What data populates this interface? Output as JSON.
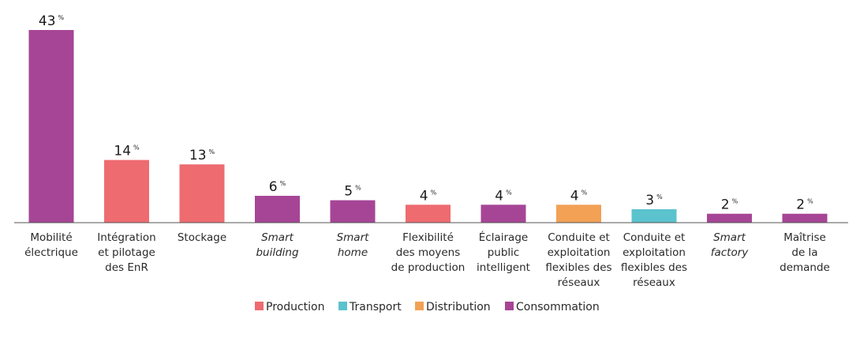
{
  "chart_data": {
    "type": "bar",
    "unit_suffix": "%",
    "categories": [
      {
        "label": [
          "Mobilité",
          "électrique"
        ],
        "italic": false,
        "value": 43,
        "group": "Consommation"
      },
      {
        "label": [
          "Intégration",
          "et pilotage",
          "des EnR"
        ],
        "italic": false,
        "value": 14,
        "group": "Production"
      },
      {
        "label": [
          "Stockage"
        ],
        "italic": false,
        "value": 13,
        "group": "Production"
      },
      {
        "label": [
          "Smart",
          "building"
        ],
        "italic": true,
        "value": 6,
        "group": "Consommation"
      },
      {
        "label": [
          "Smart",
          "home"
        ],
        "italic": true,
        "value": 5,
        "group": "Consommation"
      },
      {
        "label": [
          "Flexibilité",
          "des moyens",
          "de production"
        ],
        "italic": false,
        "value": 4,
        "group": "Production"
      },
      {
        "label": [
          "Éclairage",
          "public",
          "intelligent"
        ],
        "italic": false,
        "value": 4,
        "group": "Consommation"
      },
      {
        "label": [
          "Conduite et",
          "exploitation",
          "flexibles des",
          "réseaux"
        ],
        "italic": false,
        "value": 4,
        "group": "Distribution"
      },
      {
        "label": [
          "Conduite et",
          "exploitation",
          "flexibles des",
          "réseaux"
        ],
        "italic": false,
        "value": 3,
        "group": "Transport"
      },
      {
        "label": [
          "Smart",
          "factory"
        ],
        "italic": true,
        "value": 2,
        "group": "Consommation"
      },
      {
        "label": [
          "Maîtrise",
          "de la",
          "demande"
        ],
        "italic": false,
        "value": 2,
        "group": "Consommation"
      }
    ],
    "legend": [
      {
        "name": "Production",
        "color": "#EE6B70"
      },
      {
        "name": "Transport",
        "color": "#5BC3CD"
      },
      {
        "name": "Distribution",
        "color": "#F2A155"
      },
      {
        "name": "Consommation",
        "color": "#A64596"
      }
    ],
    "ylim": [
      0,
      43
    ],
    "legend_position": "bottom-center",
    "grid": false
  }
}
